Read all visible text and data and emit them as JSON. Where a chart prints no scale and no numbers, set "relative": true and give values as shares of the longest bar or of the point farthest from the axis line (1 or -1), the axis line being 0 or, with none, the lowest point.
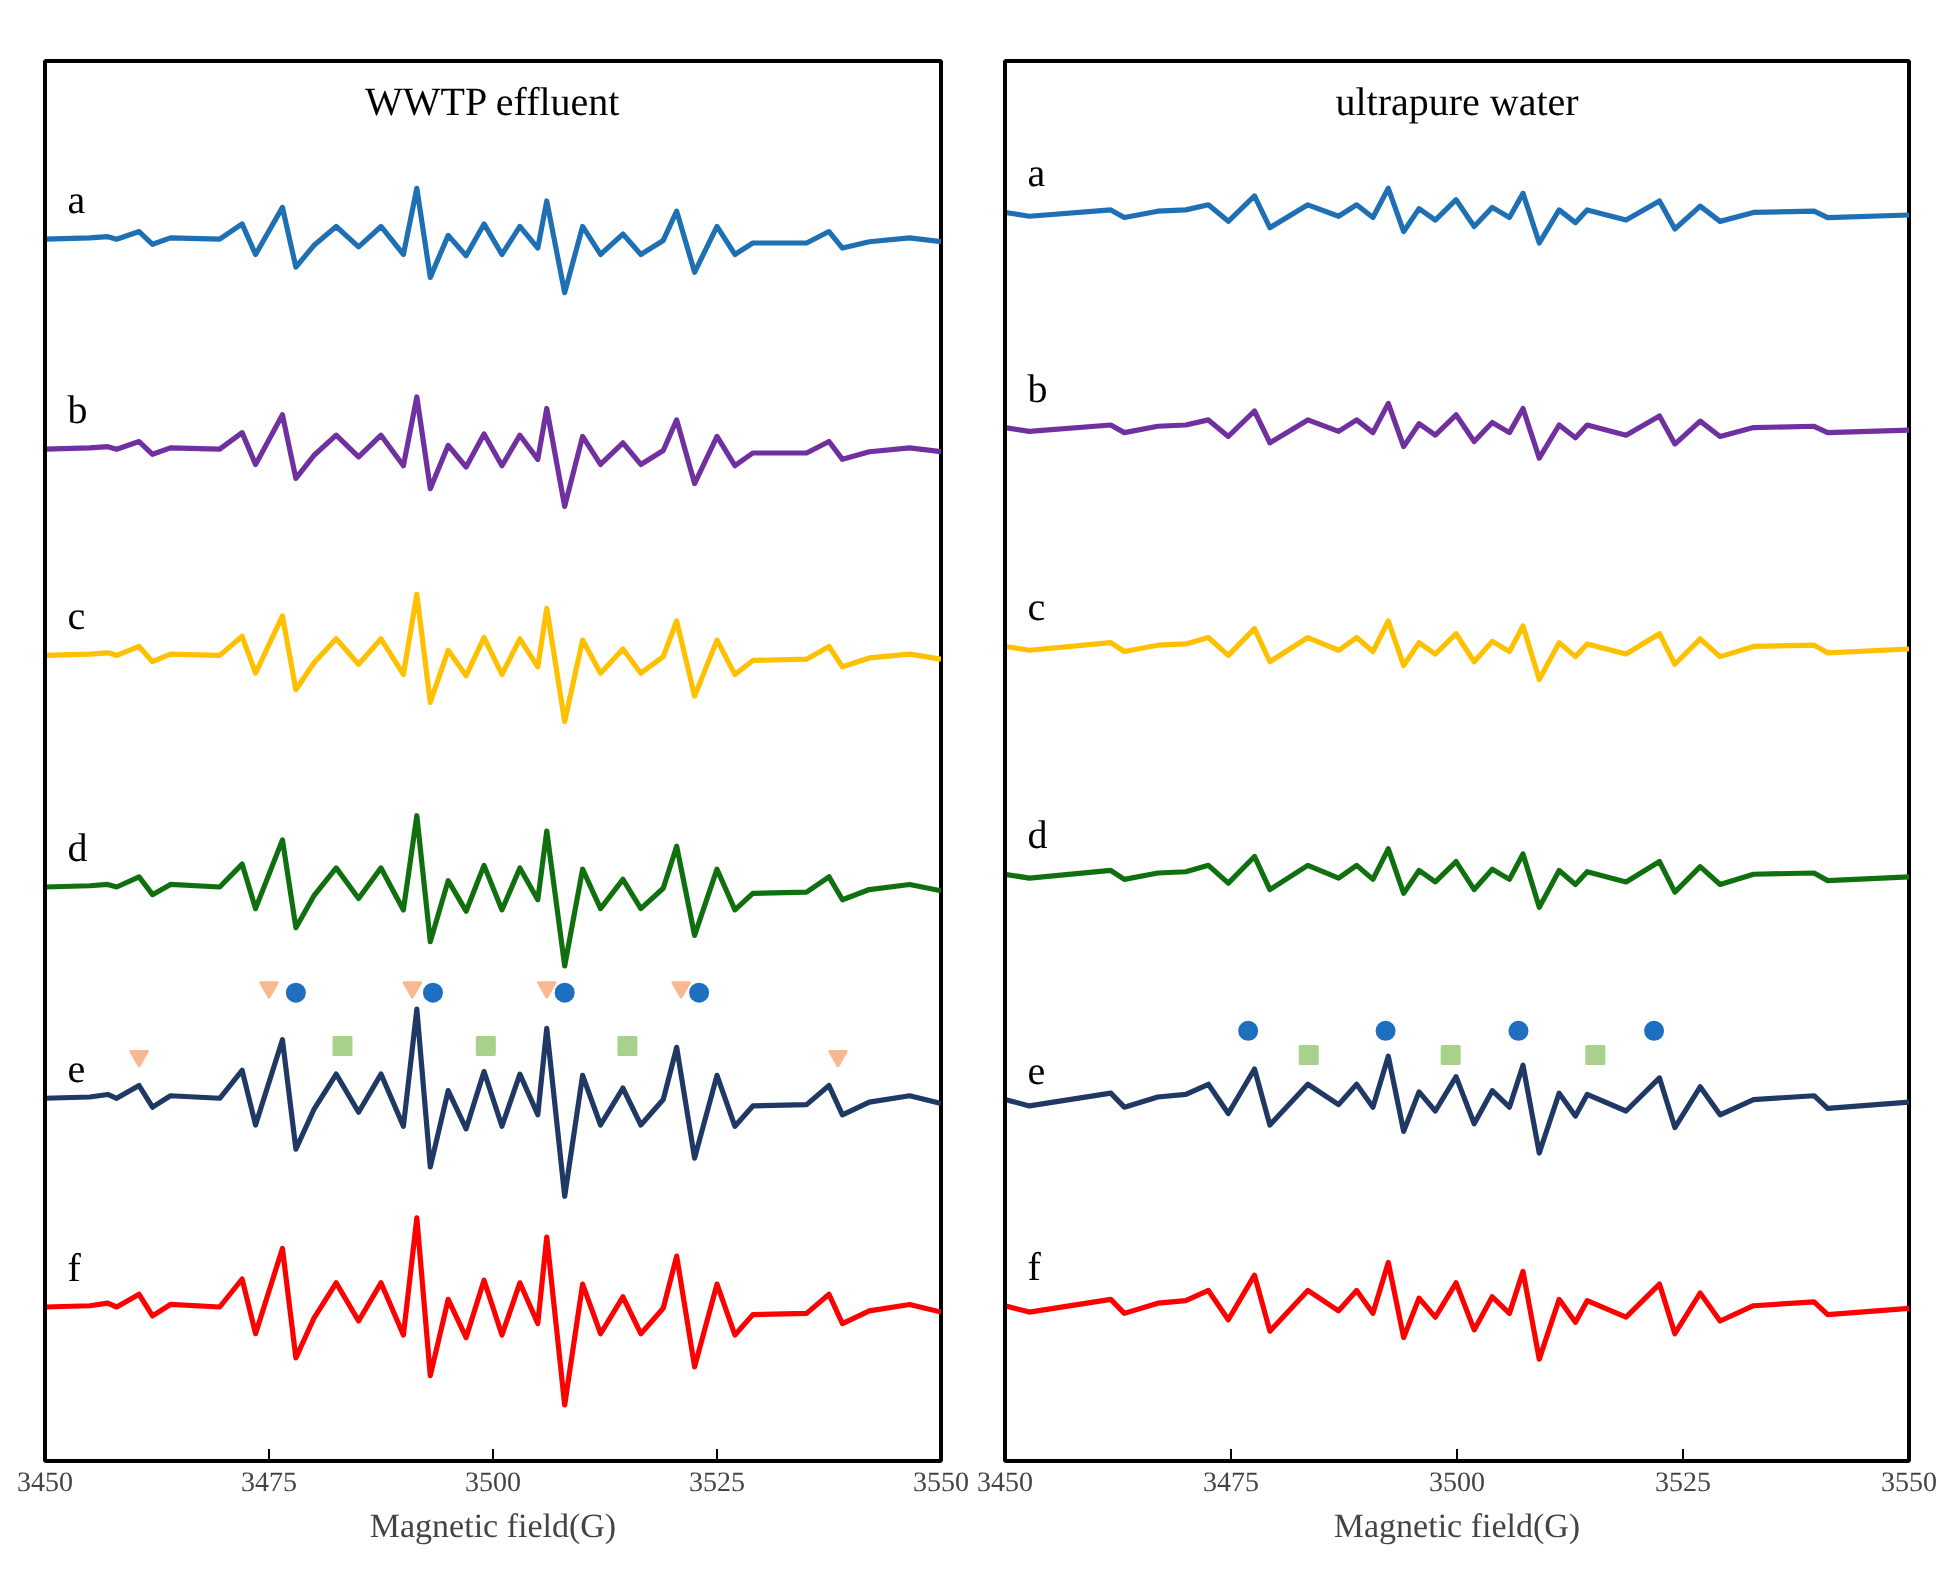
{
  "chart_data": [
    {
      "type": "line",
      "title": "WWTP effluent",
      "xlabel": "Magnetic field(G)",
      "xlim": [
        3450,
        3550
      ],
      "xticks": [
        3450,
        3475,
        3500,
        3525,
        3550
      ],
      "relative": true,
      "x": [
        3450,
        3455,
        3457,
        3458,
        3460.5,
        3462,
        3464,
        3469.5,
        3472,
        3473.5,
        3476.5,
        3478,
        3480,
        3482.5,
        3485,
        3487.5,
        3490,
        3491.5,
        3493,
        3495,
        3497,
        3499,
        3501,
        3503,
        3505,
        3506,
        3508,
        3510,
        3512,
        3514.5,
        3516.5,
        3519,
        3520.5,
        3522.5,
        3525,
        3527,
        3529,
        3535,
        3537.5,
        3539,
        3542,
        3546.5,
        3550
      ],
      "series": [
        {
          "name": "a",
          "color": "#1f6fb5",
          "values": [
            0.96,
            0.961,
            0.962,
            0.96,
            0.966,
            0.956,
            0.961,
            0.96,
            0.972,
            0.948,
            0.985,
            0.938,
            0.955,
            0.97,
            0.954,
            0.97,
            0.948,
            1.0,
            0.93,
            0.963,
            0.947,
            0.972,
            0.948,
            0.97,
            0.953,
            0.99,
            0.918,
            0.97,
            0.948,
            0.964,
            0.948,
            0.959,
            0.982,
            0.934,
            0.97,
            0.948,
            0.957,
            0.957,
            0.966,
            0.953,
            0.958,
            0.961,
            0.958
          ]
        },
        {
          "name": "b",
          "color": "#7030a0",
          "values": [
            0.795,
            0.796,
            0.797,
            0.795,
            0.801,
            0.791,
            0.796,
            0.795,
            0.808,
            0.783,
            0.822,
            0.772,
            0.79,
            0.806,
            0.789,
            0.806,
            0.782,
            0.836,
            0.764,
            0.798,
            0.781,
            0.807,
            0.782,
            0.806,
            0.787,
            0.827,
            0.75,
            0.805,
            0.783,
            0.8,
            0.783,
            0.794,
            0.818,
            0.768,
            0.805,
            0.782,
            0.792,
            0.792,
            0.801,
            0.787,
            0.793,
            0.796,
            0.793
          ]
        },
        {
          "name": "c",
          "color": "#ffc000",
          "values": [
            0.633,
            0.634,
            0.635,
            0.633,
            0.64,
            0.628,
            0.634,
            0.633,
            0.648,
            0.619,
            0.664,
            0.606,
            0.627,
            0.646,
            0.626,
            0.646,
            0.618,
            0.681,
            0.596,
            0.637,
            0.617,
            0.647,
            0.618,
            0.646,
            0.624,
            0.67,
            0.581,
            0.645,
            0.619,
            0.638,
            0.619,
            0.632,
            0.66,
            0.601,
            0.645,
            0.618,
            0.629,
            0.63,
            0.64,
            0.624,
            0.631,
            0.634,
            0.63
          ]
        },
        {
          "name": "d",
          "color": "#107010",
          "values": [
            0.451,
            0.452,
            0.453,
            0.451,
            0.459,
            0.445,
            0.453,
            0.451,
            0.469,
            0.434,
            0.488,
            0.419,
            0.444,
            0.466,
            0.442,
            0.466,
            0.433,
            0.507,
            0.408,
            0.456,
            0.432,
            0.468,
            0.433,
            0.466,
            0.441,
            0.495,
            0.389,
            0.465,
            0.434,
            0.457,
            0.434,
            0.45,
            0.483,
            0.413,
            0.465,
            0.433,
            0.446,
            0.447,
            0.459,
            0.441,
            0.449,
            0.453,
            0.448
          ]
        },
        {
          "name": "e",
          "color": "#1f3864",
          "values": [
            0.285,
            0.286,
            0.288,
            0.285,
            0.295,
            0.278,
            0.287,
            0.285,
            0.307,
            0.264,
            0.331,
            0.245,
            0.276,
            0.304,
            0.274,
            0.304,
            0.263,
            0.355,
            0.231,
            0.291,
            0.261,
            0.306,
            0.263,
            0.304,
            0.272,
            0.34,
            0.208,
            0.303,
            0.264,
            0.293,
            0.264,
            0.284,
            0.325,
            0.238,
            0.303,
            0.263,
            0.279,
            0.28,
            0.295,
            0.272,
            0.282,
            0.287,
            0.281
          ]
        },
        {
          "name": "f",
          "color": "#ff0000",
          "values": [
            0.121,
            0.122,
            0.124,
            0.121,
            0.131,
            0.114,
            0.123,
            0.121,
            0.143,
            0.1,
            0.167,
            0.081,
            0.112,
            0.14,
            0.11,
            0.14,
            0.099,
            0.191,
            0.067,
            0.127,
            0.097,
            0.142,
            0.099,
            0.14,
            0.108,
            0.176,
            0.044,
            0.139,
            0.1,
            0.129,
            0.1,
            0.12,
            0.161,
            0.074,
            0.139,
            0.099,
            0.115,
            0.116,
            0.131,
            0.108,
            0.118,
            0.123,
            0.117
          ]
        },
        {
          "type": "scatter",
          "marker": "triangle",
          "color": "#f8b890",
          "x": [
            3475,
            3491,
            3506,
            3521,
            3460.5,
            3538.5
          ],
          "values": [
            0.372,
            0.372,
            0.372,
            0.372,
            0.318,
            0.318
          ]
        },
        {
          "type": "scatter",
          "marker": "circle",
          "color": "#1f6fc0",
          "x": [
            3478,
            3493.3,
            3508,
            3523
          ],
          "values": [
            0.368,
            0.368,
            0.368,
            0.368
          ]
        },
        {
          "type": "scatter",
          "marker": "square",
          "color": "#a9d18e",
          "x": [
            3483.2,
            3499.2,
            3515
          ],
          "values": [
            0.326,
            0.326,
            0.326
          ]
        }
      ]
    },
    {
      "type": "line",
      "title": "ultrapure water",
      "xlabel": "Magnetic field(G)",
      "xlim": [
        3450,
        3550
      ],
      "xticks": [
        3450,
        3475,
        3500,
        3525,
        3550
      ],
      "relative": true,
      "x": [
        3450,
        3452.7,
        3461.7,
        3463.2,
        3466.9,
        3470,
        3472.5,
        3474.7,
        3477.6,
        3479.3,
        3483.5,
        3486.9,
        3488.9,
        3490.7,
        3492.4,
        3494.1,
        3495.8,
        3497.6,
        3499.9,
        3501.9,
        3503.9,
        3505.8,
        3507.3,
        3509.1,
        3511.3,
        3513.1,
        3514.4,
        3518.7,
        3522.4,
        3524.1,
        3526.9,
        3529.1,
        3532.8,
        3539.5,
        3541,
        3550
      ],
      "series": [
        {
          "name": "a",
          "color": "#1f6fb5",
          "values": [
            0.981,
            0.978,
            0.983,
            0.977,
            0.982,
            0.983,
            0.987,
            0.974,
            0.994,
            0.969,
            0.987,
            0.978,
            0.987,
            0.977,
            1.0,
            0.966,
            0.984,
            0.975,
            0.991,
            0.97,
            0.985,
            0.977,
            0.996,
            0.957,
            0.983,
            0.973,
            0.983,
            0.975,
            0.99,
            0.968,
            0.986,
            0.974,
            0.981,
            0.982,
            0.977,
            0.979
          ]
        },
        {
          "name": "b",
          "color": "#7030a0",
          "values": [
            0.812,
            0.809,
            0.814,
            0.808,
            0.813,
            0.814,
            0.818,
            0.805,
            0.825,
            0.8,
            0.818,
            0.809,
            0.818,
            0.808,
            0.831,
            0.797,
            0.815,
            0.806,
            0.822,
            0.801,
            0.816,
            0.808,
            0.827,
            0.788,
            0.814,
            0.804,
            0.814,
            0.806,
            0.821,
            0.799,
            0.817,
            0.805,
            0.812,
            0.813,
            0.808,
            0.81
          ]
        },
        {
          "name": "c",
          "color": "#ffc000",
          "values": [
            0.64,
            0.637,
            0.643,
            0.636,
            0.641,
            0.642,
            0.647,
            0.633,
            0.654,
            0.628,
            0.647,
            0.637,
            0.647,
            0.636,
            0.66,
            0.625,
            0.643,
            0.634,
            0.65,
            0.628,
            0.644,
            0.636,
            0.656,
            0.614,
            0.643,
            0.632,
            0.642,
            0.634,
            0.65,
            0.626,
            0.646,
            0.632,
            0.64,
            0.641,
            0.635,
            0.638
          ]
        },
        {
          "name": "d",
          "color": "#107010",
          "values": [
            0.461,
            0.458,
            0.464,
            0.457,
            0.462,
            0.463,
            0.468,
            0.454,
            0.475,
            0.449,
            0.468,
            0.458,
            0.468,
            0.457,
            0.481,
            0.446,
            0.464,
            0.455,
            0.471,
            0.449,
            0.465,
            0.457,
            0.477,
            0.435,
            0.464,
            0.453,
            0.463,
            0.455,
            0.471,
            0.447,
            0.467,
            0.453,
            0.461,
            0.462,
            0.456,
            0.459
          ]
        },
        {
          "name": "e",
          "color": "#1f3864",
          "values": [
            0.284,
            0.279,
            0.289,
            0.278,
            0.286,
            0.288,
            0.296,
            0.273,
            0.308,
            0.264,
            0.296,
            0.28,
            0.296,
            0.278,
            0.318,
            0.259,
            0.29,
            0.275,
            0.302,
            0.265,
            0.291,
            0.278,
            0.311,
            0.242,
            0.289,
            0.271,
            0.288,
            0.275,
            0.301,
            0.262,
            0.294,
            0.272,
            0.284,
            0.287,
            0.277,
            0.282
          ]
        },
        {
          "name": "f",
          "color": "#ff0000",
          "values": [
            0.122,
            0.117,
            0.127,
            0.116,
            0.124,
            0.126,
            0.134,
            0.111,
            0.146,
            0.102,
            0.134,
            0.118,
            0.134,
            0.116,
            0.156,
            0.097,
            0.128,
            0.113,
            0.14,
            0.103,
            0.129,
            0.116,
            0.149,
            0.08,
            0.127,
            0.109,
            0.126,
            0.113,
            0.139,
            0.1,
            0.132,
            0.11,
            0.122,
            0.125,
            0.115,
            0.12
          ]
        },
        {
          "type": "scatter",
          "marker": "circle",
          "color": "#1f6fc0",
          "x": [
            3476.9,
            3492.1,
            3506.8,
            3521.8
          ],
          "values": [
            0.338,
            0.338,
            0.338,
            0.338
          ]
        },
        {
          "type": "scatter",
          "marker": "square",
          "color": "#a9d18e",
          "x": [
            3483.6,
            3499.3,
            3515.3
          ],
          "values": [
            0.319,
            0.319,
            0.319
          ]
        }
      ]
    }
  ]
}
